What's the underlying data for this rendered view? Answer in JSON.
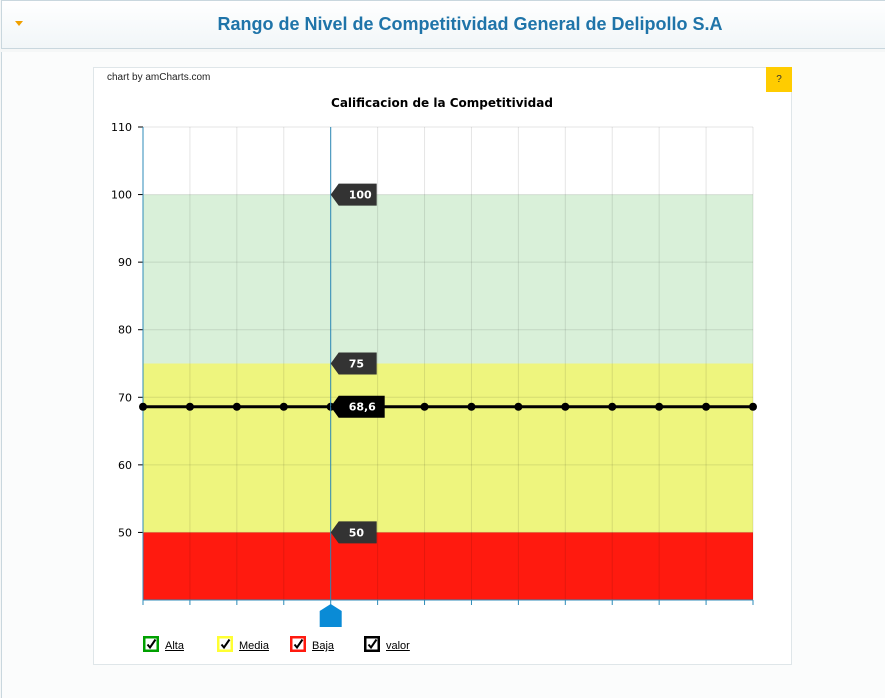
{
  "header": {
    "title": "Rango de Nivel de Competitividad General de Delipollo S.A"
  },
  "credit": "chart by amCharts.com",
  "help_label": "?",
  "chart_data": {
    "type": "line",
    "title": "Calificacion de la Competitividad",
    "ylim": [
      40,
      110
    ],
    "yticks": [
      50,
      60,
      70,
      80,
      90,
      100,
      110
    ],
    "x_count": 14,
    "grid": true,
    "bands": [
      {
        "name": "Alta",
        "from": 75,
        "to": 100,
        "color": "#d9f0d9"
      },
      {
        "name": "Media",
        "from": 50,
        "to": 75,
        "color": "#eef57e"
      },
      {
        "name": "Baja",
        "from": 40,
        "to": 50,
        "color": "#ff1a0f"
      }
    ],
    "series": [
      {
        "name": "valor",
        "color": "#000000",
        "values": [
          68.6,
          68.6,
          68.6,
          68.6,
          68.6,
          68.6,
          68.6,
          68.6,
          68.6,
          68.6,
          68.6,
          68.6,
          68.6,
          68.6
        ]
      }
    ],
    "cursor": {
      "index": 4,
      "labels": [
        "100",
        "75",
        "68,6",
        "50"
      ],
      "label_values": [
        100,
        75,
        68.6,
        50
      ]
    },
    "legend": [
      {
        "label": "Alta",
        "color": "#00a000"
      },
      {
        "label": "Media",
        "color": "#ffff33"
      },
      {
        "label": "Baja",
        "color": "#ff1a0f"
      },
      {
        "label": "valor",
        "color": "#000000"
      }
    ],
    "legend_position": "bottom-left"
  }
}
